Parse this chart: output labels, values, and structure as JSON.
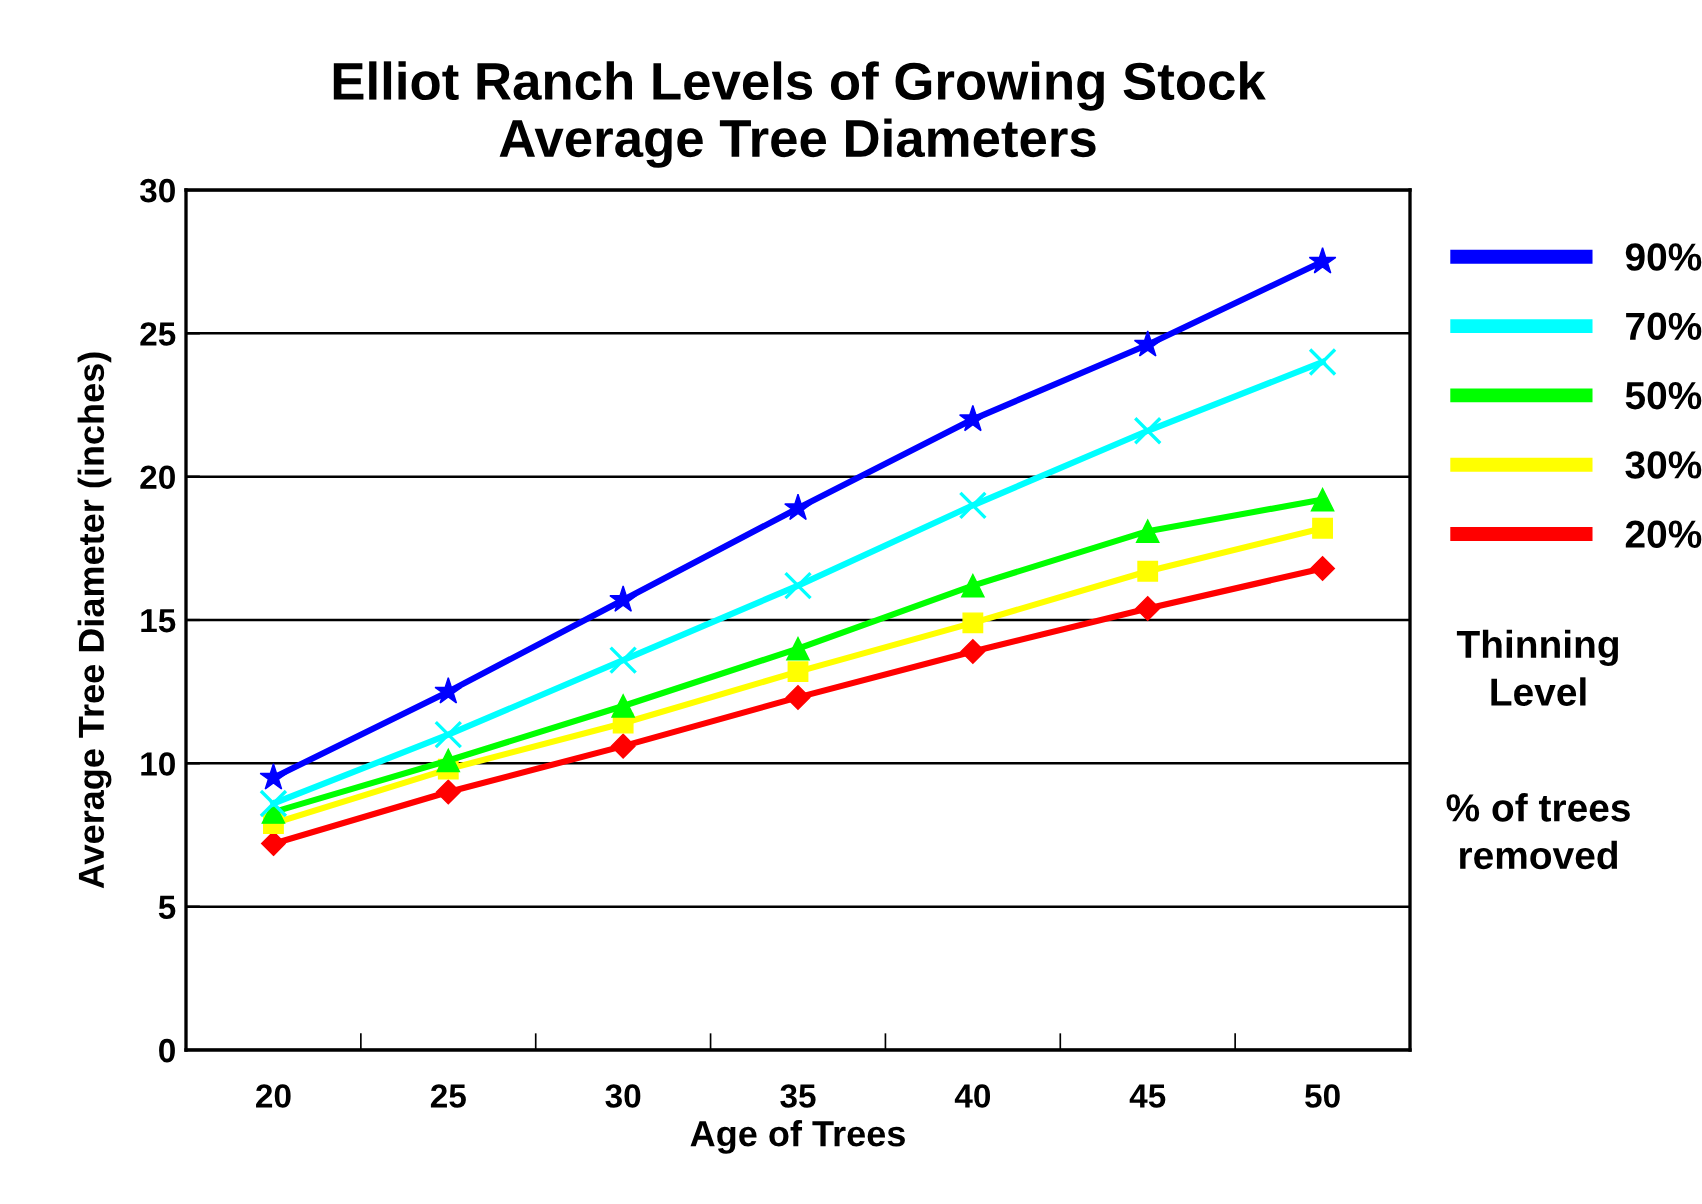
{
  "chart_data": {
    "type": "line",
    "title": "Elliot Ranch Levels of Growing Stock\nAverage Tree Diameters",
    "xlabel": "Age of Trees",
    "ylabel": "Average Tree Diameter (inches)",
    "categories": [
      "20",
      "25",
      "30",
      "35",
      "40",
      "45",
      "50"
    ],
    "series": [
      {
        "name": "90%",
        "color": "#0000ff",
        "marker": "star",
        "values": [
          9.5,
          12.5,
          15.7,
          18.9,
          22.0,
          24.6,
          27.5
        ]
      },
      {
        "name": "70%",
        "color": "#00ffff",
        "marker": "cross",
        "values": [
          8.6,
          11.0,
          13.6,
          16.2,
          19.0,
          21.6,
          24.0
        ]
      },
      {
        "name": "50%",
        "color": "#00ff00",
        "marker": "triangle",
        "values": [
          8.3,
          10.1,
          12.0,
          14.0,
          16.2,
          18.1,
          19.2
        ]
      },
      {
        "name": "30%",
        "color": "#ffff00",
        "marker": "square",
        "values": [
          7.9,
          9.8,
          11.4,
          13.2,
          14.9,
          16.7,
          18.2
        ]
      },
      {
        "name": "20%",
        "color": "#ff0000",
        "marker": "diamond",
        "values": [
          7.2,
          9.0,
          10.6,
          12.3,
          13.9,
          15.4,
          16.8
        ]
      }
    ],
    "ylim": [
      0,
      30
    ],
    "yticks": [
      0,
      5,
      10,
      15,
      20,
      25,
      30
    ],
    "grid": "y",
    "legend": "right",
    "annotations": [
      "Thinning\nLevel",
      "% of trees\nremoved"
    ]
  }
}
